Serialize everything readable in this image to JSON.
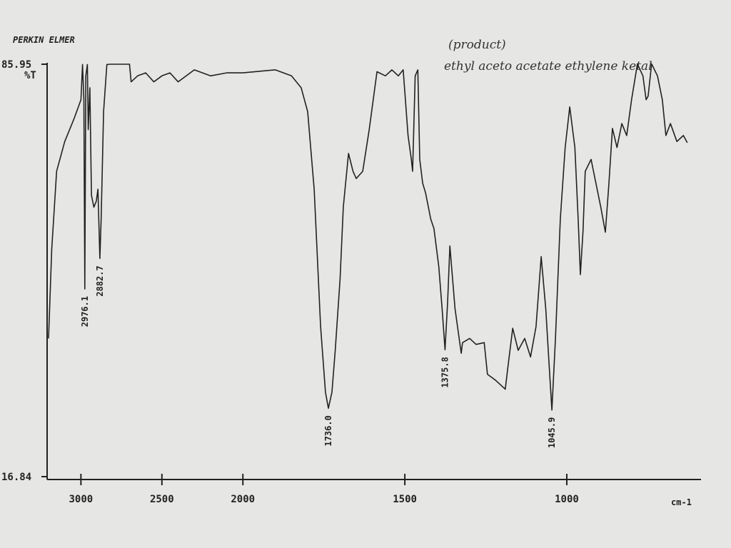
{
  "chart_data": {
    "type": "line",
    "instrument": "PERKIN ELMER",
    "y_label": "%T",
    "x_label": "cm-1",
    "notes": [
      "(product)",
      "ethyl aceto acetate ethylene ketal"
    ],
    "peak_labels": [
      "2976.1",
      "2882.7",
      "1736.0",
      "1375.8",
      "1045.9"
    ],
    "xlim": [
      3200,
      590
    ],
    "x_scale_change": {
      "at": 2000,
      "factor": 2
    },
    "xticks": [
      3000,
      2500,
      2000,
      1500,
      1000
    ],
    "ylim": [
      16.84,
      85.95
    ],
    "yticks": [
      16.84,
      85.95
    ],
    "series": [
      {
        "color": "#222222",
        "x": [
          3200,
          3180,
          3150,
          3100,
          3040,
          3000,
          2990,
          2982,
          2976,
          2970,
          2960,
          2955,
          2945,
          2935,
          2920,
          2905,
          2895,
          2883,
          2875,
          2860,
          2840,
          2820,
          2700,
          2690,
          2650,
          2600,
          2550,
          2500,
          2450,
          2400,
          2300,
          2200,
          2100,
          2000,
          1900,
          1850,
          1820,
          1800,
          1780,
          1760,
          1745,
          1736,
          1725,
          1715,
          1700,
          1690,
          1674,
          1660,
          1650,
          1630,
          1610,
          1586,
          1560,
          1540,
          1520,
          1505,
          1490,
          1480,
          1476,
          1468,
          1460,
          1454,
          1445,
          1436,
          1420,
          1410,
          1395,
          1385,
          1376,
          1368,
          1361,
          1345,
          1326,
          1322,
          1300,
          1280,
          1255,
          1245,
          1220,
          1200,
          1190,
          1180,
          1167,
          1150,
          1130,
          1112,
          1095,
          1079,
          1065,
          1055,
          1046,
          1035,
          1020,
          1005,
          991,
          975,
          965,
          958,
          950,
          943,
          925,
          910,
          895,
          881,
          870,
          859,
          845,
          830,
          815,
          800,
          782,
          765,
          755,
          749,
          742,
          738,
          720,
          705,
          694,
          680,
          660,
          640,
          628
        ],
        "values": [
          40,
          55,
          68,
          73,
          77,
          80,
          85.9,
          80,
          48.3,
          84,
          85.9,
          75,
          82,
          64,
          62,
          63,
          65,
          53.4,
          60,
          78,
          85.9,
          85.95,
          85.95,
          83,
          84,
          84.5,
          83,
          84,
          84.5,
          83,
          85,
          84,
          84.5,
          84.5,
          85,
          84,
          82,
          78,
          65,
          42,
          31,
          28.3,
          31,
          38,
          50,
          62,
          71,
          68,
          66.8,
          68,
          75,
          84.7,
          84,
          85,
          84,
          85,
          74,
          70,
          68,
          84,
          85,
          70,
          66,
          64.4,
          60,
          58.4,
          52,
          45,
          38.1,
          46,
          55.5,
          45,
          37.5,
          39.3,
          40,
          39,
          39.3,
          34,
          33,
          32,
          31.5,
          36,
          41.7,
          38,
          40,
          36.9,
          42,
          53.7,
          45,
          36,
          28,
          40,
          60,
          72,
          78.8,
          72,
          60,
          50.7,
          58,
          68,
          70,
          66,
          62,
          57.8,
          66,
          75.2,
          72,
          76,
          74,
          80,
          86,
          84,
          80,
          80.6,
          84,
          86,
          84,
          80,
          74,
          76,
          73,
          74,
          72.8
        ]
      }
    ]
  }
}
